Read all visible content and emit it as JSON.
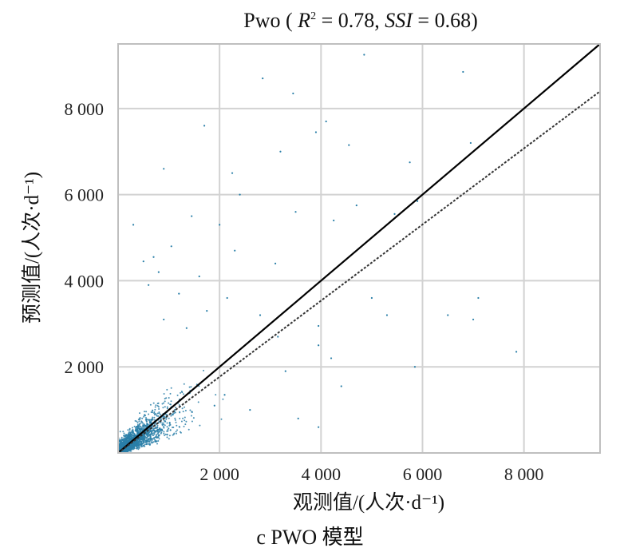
{
  "chart_data": {
    "type": "scatter",
    "title": "Pwo ( R² = 0.78,  SSI = 0.68)",
    "title_parts": {
      "prefix": "Pwo ( ",
      "r2_symbol": "R",
      "r2_superscript": "2",
      "r2_value": " = 0.78,  ",
      "ssi_symbol": "SSI",
      "ssi_value": " = 0.68)"
    },
    "xlabel": "观测值/(人次·d⁻¹)",
    "ylabel": "预测值/(人次·d⁻¹)",
    "xlim": [
      0,
      9500
    ],
    "ylim": [
      0,
      9500
    ],
    "xticks": [
      2000,
      4000,
      6000,
      8000
    ],
    "yticks": [
      2000,
      4000,
      6000,
      8000
    ],
    "xtick_labels": [
      "2 000",
      "4 000",
      "6 000",
      "8 000"
    ],
    "ytick_labels": [
      "2 000",
      "4 000",
      "6 000",
      "8 000"
    ],
    "grid": true,
    "point_color": "#2a7fa8",
    "series": [
      {
        "kind": "points",
        "color": "#2a7fa8"
      },
      {
        "kind": "line",
        "style": "solid",
        "color": "#000000",
        "x": [
          0,
          9500
        ],
        "y": [
          0,
          9500
        ]
      },
      {
        "kind": "line",
        "style": "dashed",
        "color": "#333333",
        "x": [
          0,
          9500
        ],
        "y": [
          0,
          8400
        ]
      }
    ],
    "points_sparse": [
      [
        4850,
        9250
      ],
      [
        6800,
        8850
      ],
      [
        2850,
        8700
      ],
      [
        3450,
        8350
      ],
      [
        4100,
        7700
      ],
      [
        1700,
        7600
      ],
      [
        3900,
        7450
      ],
      [
        4550,
        7150
      ],
      [
        6950,
        7200
      ],
      [
        3200,
        7000
      ],
      [
        5750,
        6750
      ],
      [
        2250,
        6500
      ],
      [
        900,
        6600
      ],
      [
        2400,
        6000
      ],
      [
        4700,
        5750
      ],
      [
        1450,
        5500
      ],
      [
        3500,
        5600
      ],
      [
        4250,
        5400
      ],
      [
        5450,
        5550
      ],
      [
        5900,
        5850
      ],
      [
        2000,
        5300
      ],
      [
        300,
        5300
      ],
      [
        1050,
        4800
      ],
      [
        2300,
        4700
      ],
      [
        700,
        4550
      ],
      [
        3100,
        4400
      ],
      [
        1600,
        4100
      ],
      [
        5000,
        3600
      ],
      [
        7100,
        3600
      ],
      [
        5300,
        3200
      ],
      [
        6500,
        3200
      ],
      [
        7000,
        3100
      ],
      [
        3950,
        2950
      ],
      [
        3950,
        2500
      ],
      [
        4200,
        2200
      ],
      [
        7850,
        2350
      ],
      [
        4400,
        1550
      ],
      [
        5850,
        2000
      ],
      [
        2600,
        1000
      ],
      [
        3550,
        800
      ],
      [
        3950,
        600
      ],
      [
        1900,
        1100
      ],
      [
        2100,
        1350
      ],
      [
        3300,
        1900
      ],
      [
        2600,
        2600
      ],
      [
        1200,
        3700
      ],
      [
        900,
        3100
      ],
      [
        600,
        3900
      ],
      [
        1750,
        3300
      ],
      [
        2150,
        3600
      ],
      [
        500,
        4450
      ],
      [
        800,
        4200
      ],
      [
        1350,
        2900
      ],
      [
        2800,
        3200
      ],
      [
        3150,
        2700
      ]
    ],
    "dense_cloud": {
      "count": 2600,
      "x_scale": 280,
      "y_scale": 260
    }
  },
  "caption": "c PWO 模型"
}
